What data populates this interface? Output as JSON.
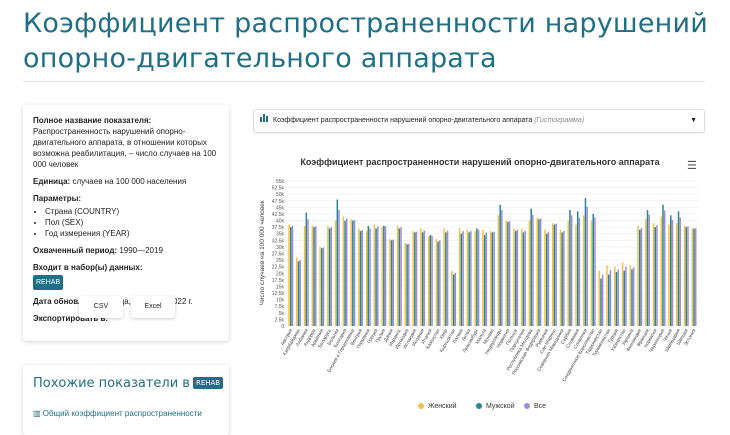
{
  "page_title": "Коэффициент распространенности нарушений опорно-двигательного аппарата",
  "info": {
    "full_name_label": "Полное название показателя:",
    "full_name_value": "Распространенность нарушений опорно-двигательного аппарата, в отношении которых возможна реабилитация, – число случаев на 100 000 человек",
    "unit_label": "Единица:",
    "unit_value": "случаев на 100 000 населения",
    "params_label": "Параметры:",
    "params": [
      "Страна (COUNTRY)",
      "Пол (SEX)",
      "Год измерения (YEAR)"
    ],
    "period_label": "Охваченный период:",
    "period_value": "1990—2019",
    "sets_label": "Входит в набор(ы) данных:",
    "sets_badge": "REHAB",
    "updated_label": "Дата обновления:",
    "updated_value": "среда, 2 ноября 2022 г.",
    "export_label": "Экспортировать в:",
    "csv": "CSV",
    "excel": "Excel"
  },
  "similar": {
    "title": "Похожие показатели в",
    "badge": "REHAB",
    "link": "Общий коэффициент распространенности"
  },
  "selector": {
    "text": "Коэффициент распространенности нарушений опорно-двигательного аппарата",
    "type": "(Гистограмма)"
  },
  "chart_data": {
    "type": "bar",
    "title": "Коэффициент распространенности нарушений опорно-двигательного аппарата",
    "ylabel": "Число случаев на 100 000 человек",
    "ylim": [
      0,
      55000
    ],
    "yticks": [
      "0",
      "2.5k",
      "5k",
      "7.5k",
      "10k",
      "12.5k",
      "15k",
      "17.5k",
      "20k",
      "22.5k",
      "25k",
      "27.5k",
      "30k",
      "32.5k",
      "35k",
      "37.5k",
      "40k",
      "42.5k",
      "45k",
      "47.5k",
      "50k",
      "52.5k",
      "55k"
    ],
    "categories": [
      "Австрия",
      "Азербайджан",
      "Албания",
      "Андорра",
      "Армения",
      "Беларусь",
      "Бельгия",
      "Болгария",
      "Босния и Герцеговина",
      "Венгрия",
      "Германия",
      "Греция",
      "Грузия",
      "Дания",
      "Израиль",
      "Ирландия",
      "Исландия",
      "Испания",
      "Италия",
      "Казахстан",
      "Кипр",
      "Кыргызстан",
      "Латвия",
      "Литва",
      "Люксембург",
      "Мальта",
      "Монако",
      "Нидерланды",
      "Норвегия",
      "Польша",
      "Португалия",
      "Республика Молдова",
      "Российская Федерация",
      "Румыния",
      "Сан-Марино",
      "Северная Македония",
      "Сербия",
      "Словакия",
      "Словения",
      "Соединенное Королевство",
      "Таджикистан",
      "Туркменистан",
      "Турция",
      "Узбекистан",
      "Украина",
      "Финляндия",
      "Франция",
      "Хорватия",
      "Черногория",
      "Чехия",
      "Швейцария",
      "Швеция",
      "Эстония"
    ],
    "series": [
      {
        "name": "Женский",
        "color": "#f5c242",
        "values": [
          38500,
          26000,
          38000,
          38000,
          30000,
          38000,
          40000,
          41500,
          40500,
          37000,
          36000,
          38500,
          37500,
          33000,
          38000,
          31500,
          36000,
          37000,
          34000,
          33000,
          37000,
          21000,
          37000,
          36500,
          36000,
          36500,
          36000,
          42000,
          40000,
          37000,
          37000,
          40000,
          41000,
          36500,
          39000,
          36500,
          40000,
          38500,
          42000,
          40000,
          21000,
          23000,
          22500,
          24000,
          23000,
          38000,
          40500,
          39000,
          41500,
          38500,
          39000,
          38000,
          37000
        ]
      },
      {
        "name": "Мужской",
        "color": "#26869a",
        "values": [
          37500,
          24500,
          43000,
          37500,
          29500,
          37000,
          48000,
          40000,
          40000,
          36000,
          38000,
          37000,
          38000,
          32500,
          37000,
          31000,
          35500,
          35500,
          34500,
          32000,
          35500,
          19500,
          35000,
          35500,
          37000,
          34500,
          35500,
          46000,
          39500,
          36000,
          35500,
          44500,
          40500,
          35000,
          38500,
          35500,
          44000,
          43500,
          48500,
          42500,
          18000,
          19500,
          20500,
          21000,
          21500,
          36500,
          44000,
          37500,
          46000,
          42000,
          43500,
          37500,
          37000
        ]
      },
      {
        "name": "Все",
        "color": "#a58ad1",
        "values": [
          38000,
          25000,
          40500,
          37800,
          29800,
          37500,
          44000,
          40800,
          40200,
          36500,
          37000,
          37800,
          37800,
          32800,
          37500,
          31200,
          35800,
          36200,
          34200,
          32500,
          36200,
          20200,
          36000,
          36000,
          36500,
          35500,
          35800,
          44000,
          39800,
          36500,
          36200,
          42200,
          40800,
          35800,
          38800,
          36000,
          42000,
          41000,
          45200,
          41200,
          19500,
          21200,
          21500,
          22500,
          22200,
          37200,
          42200,
          38200,
          43800,
          40200,
          41200,
          37800,
          37000
        ]
      }
    ]
  }
}
